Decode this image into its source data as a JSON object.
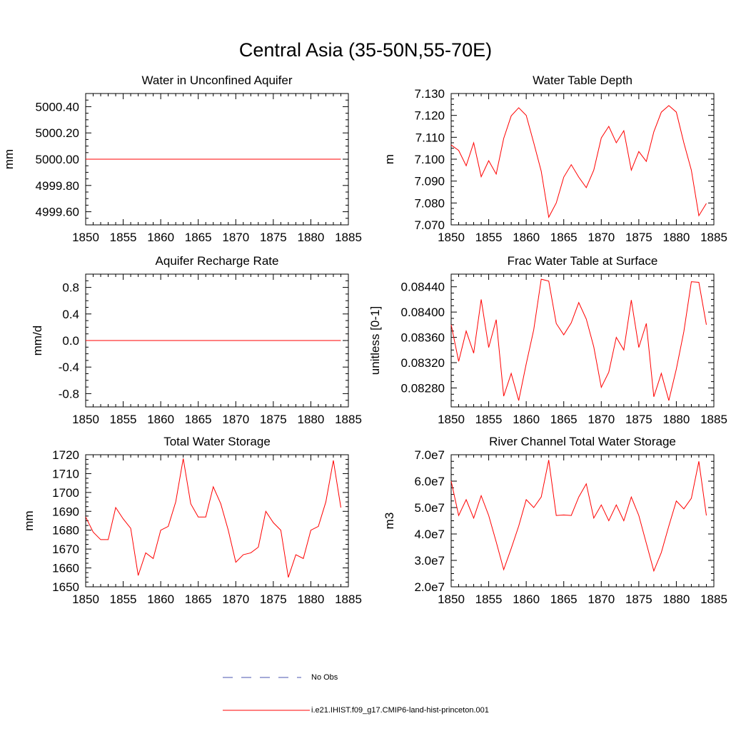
{
  "title": "Central Asia (35-50N,55-70E)",
  "colors": {
    "model": "#ff0000",
    "obs": "#4a56b0",
    "axis": "#000000"
  },
  "legend": [
    {
      "label": "No Obs",
      "style": "dashed",
      "color": "#4a56b0"
    },
    {
      "label": "i.e21.IHIST.f09_g17.CMIP6-land-hist-princeton.001",
      "style": "solid",
      "color": "#ff0000"
    }
  ],
  "chart_data": [
    {
      "type": "line",
      "title": "Water in Unconfined Aquifer",
      "ylabel": "mm",
      "xlim": [
        1850,
        1885
      ],
      "ylim": [
        4999.5,
        5000.5
      ],
      "xticks": [
        1850,
        1855,
        1860,
        1865,
        1870,
        1875,
        1880,
        1885
      ],
      "xtick_labels": [
        "1850",
        "1855",
        "1860",
        "1865",
        "1870",
        "1875",
        "1880",
        "1885"
      ],
      "yticks": [
        4999.6,
        4999.8,
        5000.0,
        5000.2,
        5000.4
      ],
      "ytick_labels": [
        "4999.60",
        "4999.80",
        "5000.00",
        "5000.20",
        "5000.40"
      ],
      "x": [
        1850,
        1851,
        1852,
        1853,
        1854,
        1855,
        1856,
        1857,
        1858,
        1859,
        1860,
        1861,
        1862,
        1863,
        1864,
        1865,
        1866,
        1867,
        1868,
        1869,
        1870,
        1871,
        1872,
        1873,
        1874,
        1875,
        1876,
        1877,
        1878,
        1879,
        1880,
        1881,
        1882,
        1883,
        1884
      ],
      "series": [
        {
          "values": [
            5000,
            5000,
            5000,
            5000,
            5000,
            5000,
            5000,
            5000,
            5000,
            5000,
            5000,
            5000,
            5000,
            5000,
            5000,
            5000,
            5000,
            5000,
            5000,
            5000,
            5000,
            5000,
            5000,
            5000,
            5000,
            5000,
            5000,
            5000,
            5000,
            5000,
            5000,
            5000,
            5000,
            5000,
            5000
          ]
        }
      ]
    },
    {
      "type": "line",
      "title": "Water Table Depth",
      "ylabel": "m",
      "xlim": [
        1850,
        1885
      ],
      "ylim": [
        7.07,
        7.13
      ],
      "xticks": [
        1850,
        1855,
        1860,
        1865,
        1870,
        1875,
        1880,
        1885
      ],
      "xtick_labels": [
        "1850",
        "1855",
        "1860",
        "1865",
        "1870",
        "1875",
        "1880",
        "1885"
      ],
      "yticks": [
        7.07,
        7.08,
        7.09,
        7.1,
        7.11,
        7.12,
        7.13
      ],
      "ytick_labels": [
        "7.070",
        "7.080",
        "7.090",
        "7.100",
        "7.110",
        "7.120",
        "7.130"
      ],
      "x": [
        1850,
        1851,
        1852,
        1853,
        1854,
        1855,
        1856,
        1857,
        1858,
        1859,
        1860,
        1861,
        1862,
        1863,
        1864,
        1865,
        1866,
        1867,
        1868,
        1869,
        1870,
        1871,
        1872,
        1873,
        1874,
        1875,
        1876,
        1877,
        1878,
        1879,
        1880,
        1881,
        1882,
        1883,
        1884
      ],
      "series": [
        {
          "values": [
            7.1065,
            7.104,
            7.097,
            7.1075,
            7.092,
            7.0993,
            7.0932,
            7.1095,
            7.1198,
            7.1235,
            7.12,
            7.1075,
            7.0945,
            7.0735,
            7.08,
            7.0918,
            7.0975,
            7.0918,
            7.087,
            7.095,
            7.1097,
            7.115,
            7.1075,
            7.113,
            7.095,
            7.1035,
            7.099,
            7.1125,
            7.1215,
            7.1245,
            7.1215,
            7.1075,
            7.095,
            7.0742,
            7.0798
          ]
        }
      ]
    },
    {
      "type": "line",
      "title": "Aquifer Recharge Rate",
      "ylabel": "mm/d",
      "xlim": [
        1850,
        1885
      ],
      "ylim": [
        -1.0,
        1.0
      ],
      "xticks": [
        1850,
        1855,
        1860,
        1865,
        1870,
        1875,
        1880,
        1885
      ],
      "xtick_labels": [
        "1850",
        "1855",
        "1860",
        "1865",
        "1870",
        "1875",
        "1880",
        "1885"
      ],
      "yticks": [
        -0.8,
        -0.4,
        0.0,
        0.4,
        0.8
      ],
      "ytick_labels": [
        "-0.8",
        "-0.4",
        "0.0",
        "0.4",
        "0.8"
      ],
      "x": [
        1850,
        1851,
        1852,
        1853,
        1854,
        1855,
        1856,
        1857,
        1858,
        1859,
        1860,
        1861,
        1862,
        1863,
        1864,
        1865,
        1866,
        1867,
        1868,
        1869,
        1870,
        1871,
        1872,
        1873,
        1874,
        1875,
        1876,
        1877,
        1878,
        1879,
        1880,
        1881,
        1882,
        1883,
        1884
      ],
      "series": [
        {
          "values": [
            0,
            0,
            0,
            0,
            0,
            0,
            0,
            0,
            0,
            0,
            0,
            0,
            0,
            0,
            0,
            0,
            0,
            0,
            0,
            0,
            0,
            0,
            0,
            0,
            0,
            0,
            0,
            0,
            0,
            0,
            0,
            0,
            0,
            0,
            0
          ]
        }
      ]
    },
    {
      "type": "line",
      "title": "Frac Water Table at Surface",
      "ylabel": "unitless [0-1]",
      "xlim": [
        1850,
        1885
      ],
      "ylim": [
        0.0825,
        0.0846
      ],
      "xticks": [
        1850,
        1855,
        1860,
        1865,
        1870,
        1875,
        1880,
        1885
      ],
      "xtick_labels": [
        "1850",
        "1855",
        "1860",
        "1865",
        "1870",
        "1875",
        "1880",
        "1885"
      ],
      "yticks": [
        0.0828,
        0.0832,
        0.0836,
        0.084,
        0.0844
      ],
      "ytick_labels": [
        "0.08280",
        "0.08320",
        "0.08360",
        "0.08400",
        "0.08440"
      ],
      "x": [
        1850,
        1851,
        1852,
        1853,
        1854,
        1855,
        1856,
        1857,
        1858,
        1859,
        1860,
        1861,
        1862,
        1863,
        1864,
        1865,
        1866,
        1867,
        1868,
        1869,
        1870,
        1871,
        1872,
        1873,
        1874,
        1875,
        1876,
        1877,
        1878,
        1879,
        1880,
        1881,
        1882,
        1883,
        1884
      ],
      "series": [
        {
          "values": [
            0.0838,
            0.08322,
            0.0837,
            0.08335,
            0.0842,
            0.08344,
            0.08388,
            0.08267,
            0.08303,
            0.0826,
            0.08318,
            0.08372,
            0.08452,
            0.08449,
            0.08382,
            0.08364,
            0.08383,
            0.08415,
            0.08389,
            0.08345,
            0.08281,
            0.08305,
            0.0836,
            0.0834,
            0.08419,
            0.08344,
            0.08382,
            0.08266,
            0.08303,
            0.0826,
            0.0831,
            0.08369,
            0.08448,
            0.08447,
            0.0838
          ]
        }
      ]
    },
    {
      "type": "line",
      "title": "Total Water Storage",
      "ylabel": "mm",
      "xlim": [
        1850,
        1885
      ],
      "ylim": [
        1650,
        1720
      ],
      "xticks": [
        1850,
        1855,
        1860,
        1865,
        1870,
        1875,
        1880,
        1885
      ],
      "xtick_labels": [
        "1850",
        "1855",
        "1860",
        "1865",
        "1870",
        "1875",
        "1880",
        "1885"
      ],
      "yticks": [
        1650,
        1660,
        1670,
        1680,
        1690,
        1700,
        1710,
        1720
      ],
      "ytick_labels": [
        "1650",
        "1660",
        "1670",
        "1680",
        "1690",
        "1700",
        "1710",
        "1720"
      ],
      "x": [
        1850,
        1851,
        1852,
        1853,
        1854,
        1855,
        1856,
        1857,
        1858,
        1859,
        1860,
        1861,
        1862,
        1863,
        1864,
        1865,
        1866,
        1867,
        1868,
        1869,
        1870,
        1871,
        1872,
        1873,
        1874,
        1875,
        1876,
        1877,
        1878,
        1879,
        1880,
        1881,
        1882,
        1883,
        1884
      ],
      "series": [
        {
          "values": [
            1687,
            1679,
            1675,
            1675,
            1692,
            1686,
            1681,
            1656,
            1668,
            1665,
            1680,
            1682,
            1695,
            1718,
            1694,
            1687,
            1687,
            1703,
            1694,
            1680,
            1663,
            1667,
            1668,
            1671,
            1690,
            1684,
            1680,
            1655,
            1667,
            1665,
            1680,
            1682,
            1695,
            1717,
            1692
          ]
        }
      ]
    },
    {
      "type": "line",
      "title": "River Channel Total Water Storage",
      "ylabel": "m3",
      "xlim": [
        1850,
        1885
      ],
      "ylim": [
        20000000,
        70000000
      ],
      "xticks": [
        1850,
        1855,
        1860,
        1865,
        1870,
        1875,
        1880,
        1885
      ],
      "xtick_labels": [
        "1850",
        "1855",
        "1860",
        "1865",
        "1870",
        "1875",
        "1880",
        "1885"
      ],
      "yticks": [
        20000000,
        30000000,
        40000000,
        50000000,
        60000000,
        70000000
      ],
      "ytick_labels": [
        "2.0e7",
        "3.0e7",
        "4.0e7",
        "5.0e7",
        "6.0e7",
        "7.0e7"
      ],
      "x": [
        1850,
        1851,
        1852,
        1853,
        1854,
        1855,
        1856,
        1857,
        1858,
        1859,
        1860,
        1861,
        1862,
        1863,
        1864,
        1865,
        1866,
        1867,
        1868,
        1869,
        1870,
        1871,
        1872,
        1873,
        1874,
        1875,
        1876,
        1877,
        1878,
        1879,
        1880,
        1881,
        1882,
        1883,
        1884
      ],
      "series": [
        {
          "values": [
            60000000,
            47000000,
            53000000,
            46000000,
            54500000,
            47000000,
            37000000,
            26500000,
            34500000,
            43000000,
            53000000,
            50000000,
            54000000,
            68000000,
            47000000,
            47200000,
            47000000,
            54000000,
            59000000,
            46000000,
            51000000,
            45000000,
            51000000,
            45000000,
            54000000,
            47000000,
            36500000,
            26000000,
            33000000,
            43000000,
            52500000,
            49500000,
            53500000,
            67500000,
            47000000
          ]
        }
      ]
    }
  ]
}
